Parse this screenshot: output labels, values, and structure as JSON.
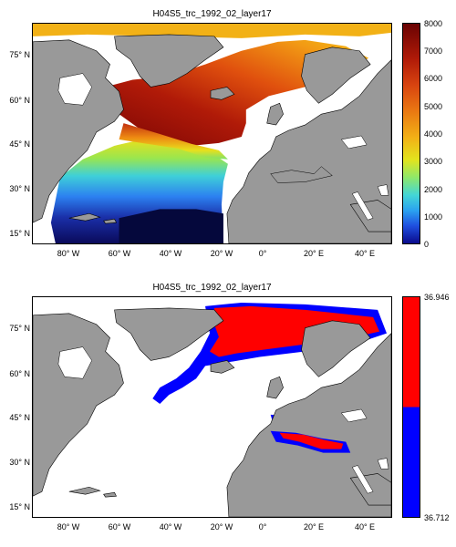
{
  "panels": [
    {
      "title": "H04S5_trc_1992_02_layer17",
      "yticks": [
        "75° N",
        "60° N",
        "45° N",
        "30° N",
        "15° N"
      ],
      "xticks": [
        "80° W",
        "60° W",
        "40° W",
        "20° W",
        "0°",
        "20° E",
        "40° E"
      ],
      "colorbar": {
        "ticks": [
          "8000",
          "7000",
          "6000",
          "5000",
          "4000",
          "3000",
          "2000",
          "1000",
          "0"
        ],
        "colormap": "jet",
        "min": 0,
        "max": 8000
      }
    },
    {
      "title": "H04S5_trc_1992_02_layer17",
      "yticks": [
        "75° N",
        "60° N",
        "45° N",
        "30° N",
        "15° N"
      ],
      "xticks": [
        "80° W",
        "60° W",
        "40° W",
        "20° W",
        "0°",
        "20° E",
        "40° E"
      ],
      "colorbar": {
        "ticks": [
          "36.946",
          "36.712"
        ],
        "colors": [
          "#ff0000",
          "#0000ff"
        ]
      }
    }
  ],
  "map_extent": {
    "lon": [
      -90,
      50
    ],
    "lat": [
      10,
      85
    ]
  },
  "colors": {
    "land": "#999999",
    "ocean_nodata": "#ffffff",
    "high": "#ff0000",
    "low": "#0000ff"
  }
}
